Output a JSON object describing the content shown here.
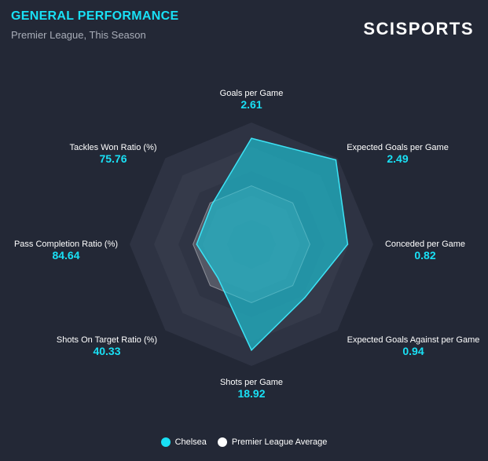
{
  "header": {
    "title": "GENERAL PERFORMANCE",
    "subtitle": "Premier League, This Season",
    "brand": "SCISPORTS"
  },
  "colors": {
    "accent": "#19e0f5",
    "team_fill": "#22b5c8",
    "average_fill": "#ffffff",
    "background": "#232836"
  },
  "chart_data": {
    "type": "radar",
    "title": "GENERAL PERFORMANCE",
    "subtitle": "Premier League, This Season",
    "grid": true,
    "legend_position": "bottom-center",
    "axes": [
      {
        "label": "Goals per Game",
        "value": "2.61"
      },
      {
        "label": "Expected Goals per Game",
        "value": "2.49"
      },
      {
        "label": "Conceded per Game",
        "value": "0.82"
      },
      {
        "label": "Expected Goals Against per Game",
        "value": "0.94"
      },
      {
        "label": "Shots per Game",
        "value": "18.92"
      },
      {
        "label": "Shots On Target Ratio (%)",
        "value": "40.33"
      },
      {
        "label": "Pass Completion Ratio (%)",
        "value": "84.64"
      },
      {
        "label": "Tackles Won Ratio (%)",
        "value": "75.76"
      }
    ],
    "scale": "normalized 0-1 per axis",
    "series": [
      {
        "name": "Chelsea",
        "color": "#22b5c8",
        "values": [
          0.87,
          0.98,
          0.79,
          0.62,
          0.87,
          0.39,
          0.45,
          0.46
        ]
      },
      {
        "name": "Premier League Average",
        "color": "#ffffff",
        "values": [
          0.48,
          0.48,
          0.48,
          0.48,
          0.48,
          0.48,
          0.48,
          0.48
        ]
      }
    ]
  }
}
